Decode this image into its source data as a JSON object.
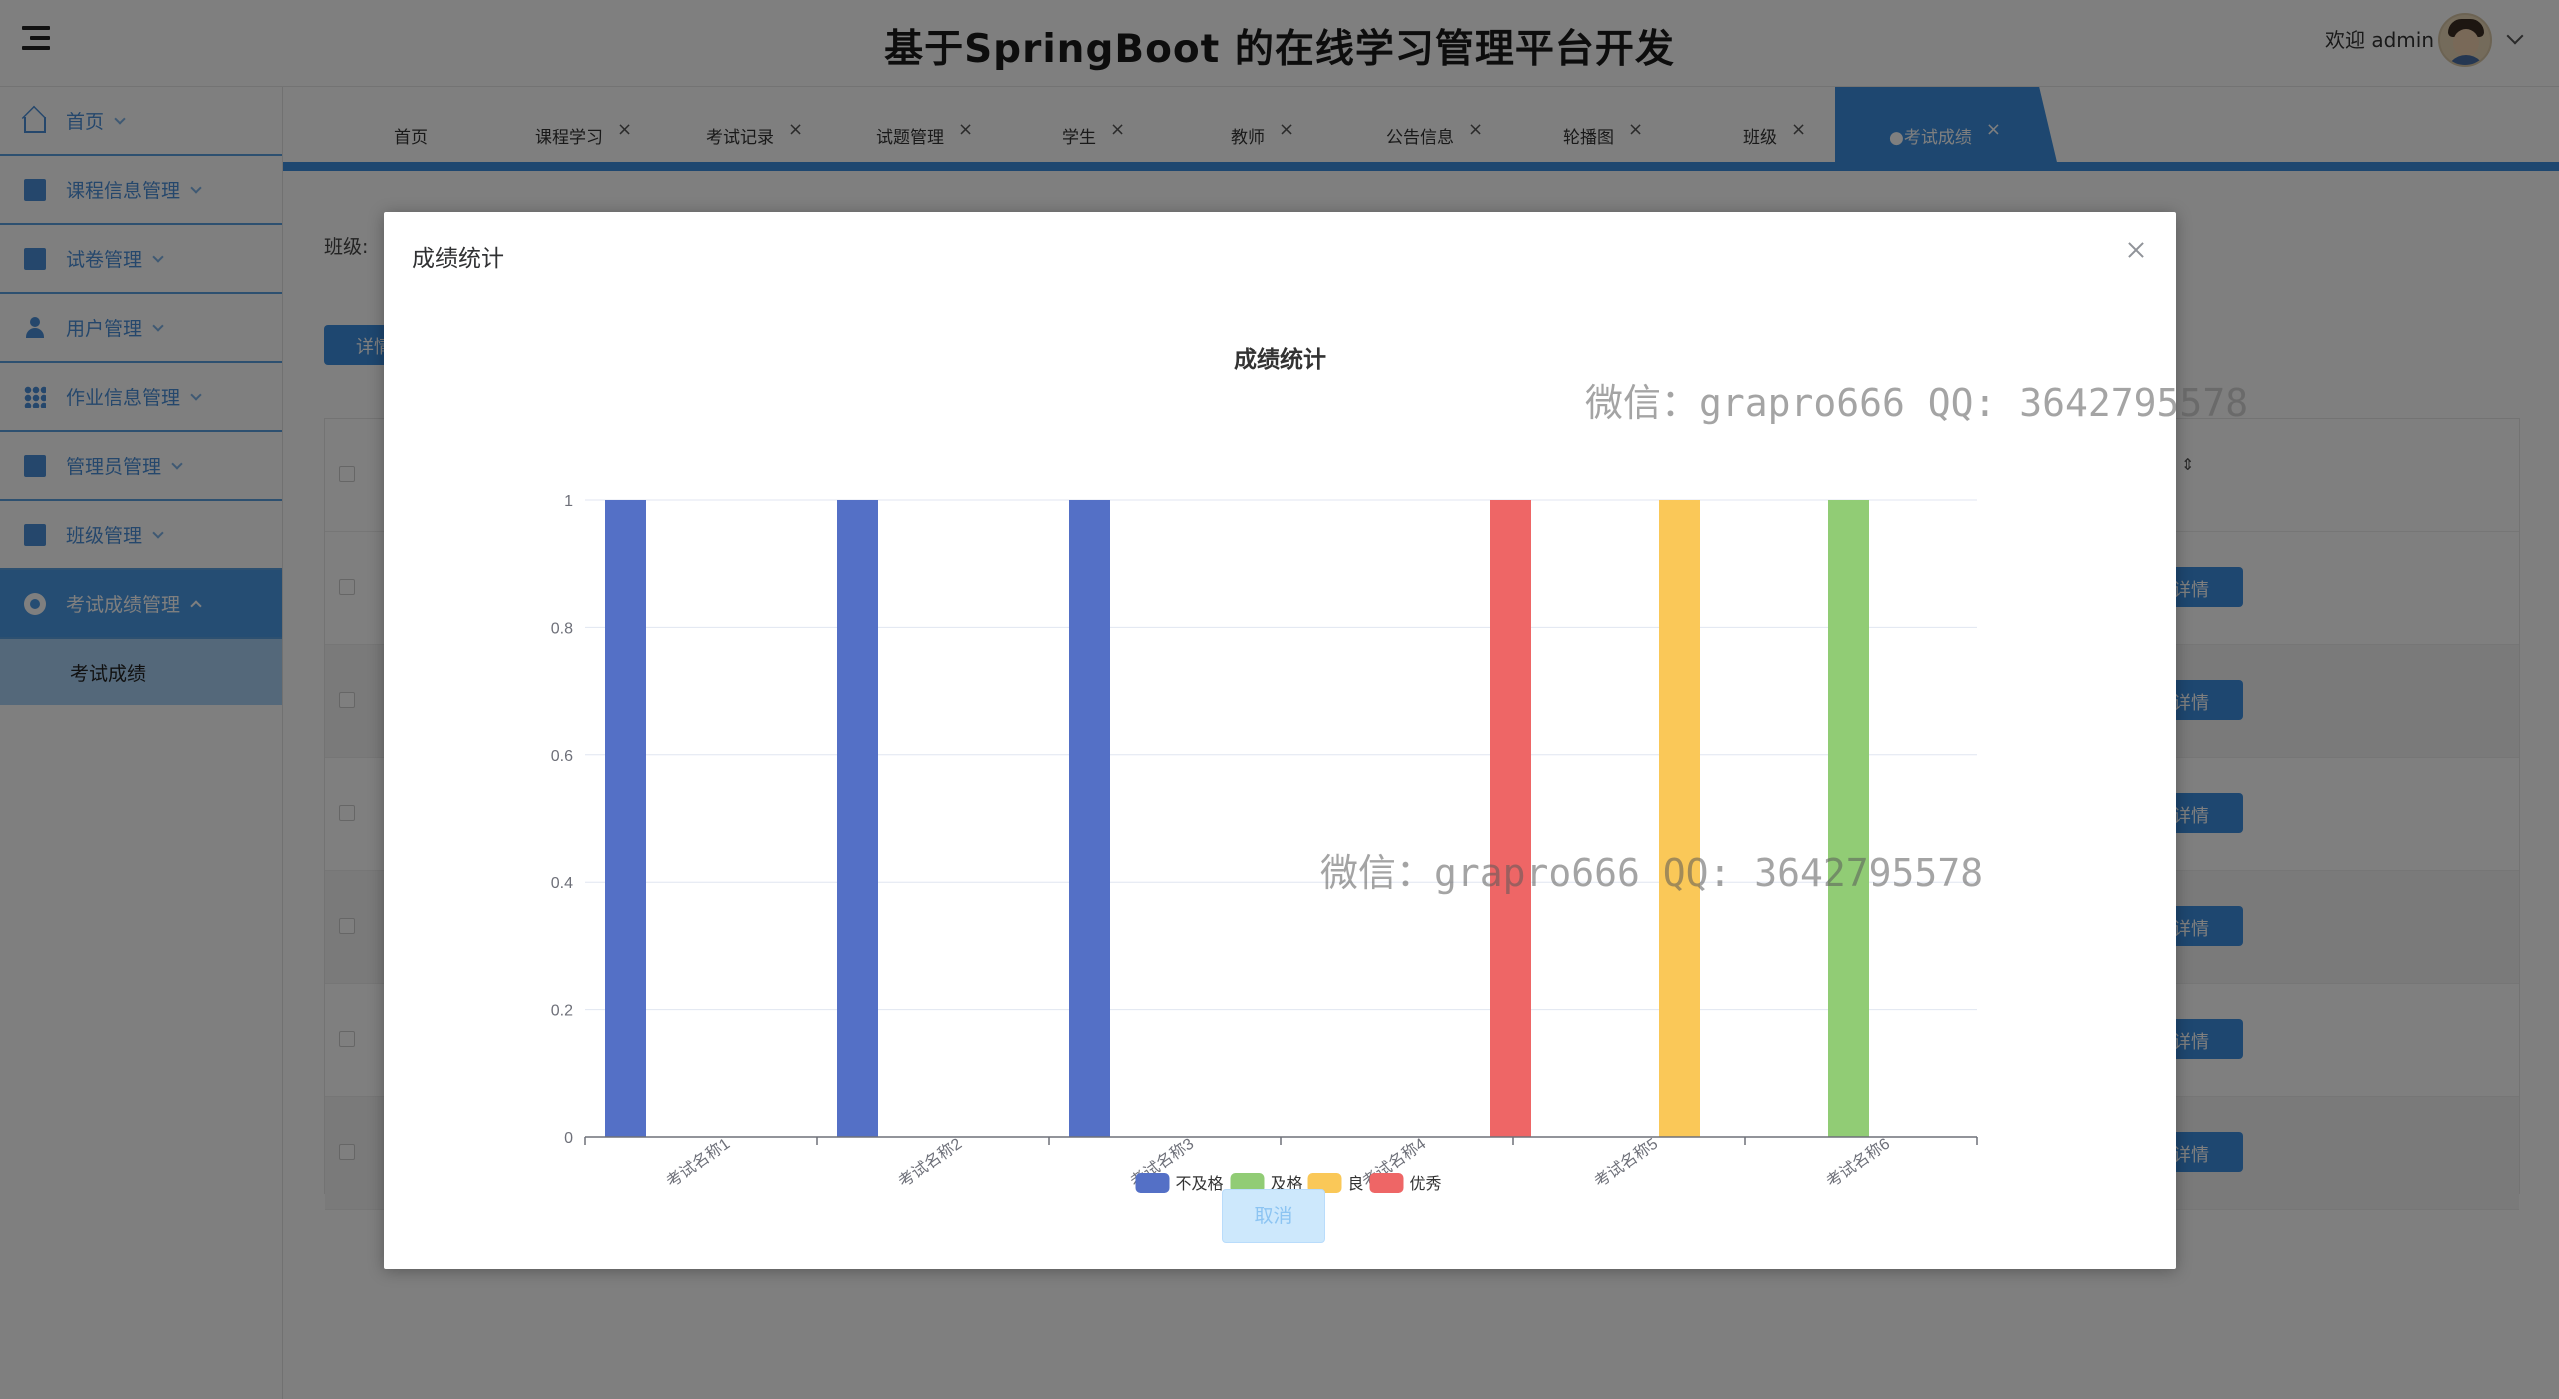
{
  "header": {
    "title": "基于SpringBoot 的在线学习管理平台开发",
    "welcome": "欢迎 admin"
  },
  "sidebar": {
    "items": [
      {
        "label": "首页",
        "icon": "home-icon"
      },
      {
        "label": "课程信息管理",
        "icon": "chart-board-icon"
      },
      {
        "label": "试卷管理",
        "icon": "paper-icon"
      },
      {
        "label": "用户管理",
        "icon": "user-icon"
      },
      {
        "label": "作业信息管理",
        "icon": "grid-icon"
      },
      {
        "label": "管理员管理",
        "icon": "table-icon"
      },
      {
        "label": "班级管理",
        "icon": "class-icon"
      },
      {
        "label": "考试成绩管理",
        "icon": "circle-dot-icon"
      }
    ],
    "sub_item": "考试成绩"
  },
  "tabs": [
    {
      "label": "首页"
    },
    {
      "label": "课程学习"
    },
    {
      "label": "考试记录"
    },
    {
      "label": "试题管理"
    },
    {
      "label": "学生"
    },
    {
      "label": "教师"
    },
    {
      "label": "公告信息"
    },
    {
      "label": "轮播图"
    },
    {
      "label": "班级"
    },
    {
      "label": "●考试成绩"
    }
  ],
  "main": {
    "filter_label": "班级:",
    "detail_label": "详情",
    "row_detail_label": "详情"
  },
  "dialog": {
    "title": "成绩统计",
    "cancel_label": "取消"
  },
  "watermark": "微信：grapro666 QQ: 3642795578",
  "colors": {
    "fail": "#5470c6",
    "pass": "#91cc75",
    "good": "#fac858",
    "excellent": "#ee6666",
    "primary": "#3d8fe0"
  },
  "chart_data": {
    "type": "bar",
    "title": "成绩统计",
    "categories": [
      "考试名称1",
      "考试名称2",
      "考试名称3",
      "考试名称4",
      "考试名称5",
      "考试名称6"
    ],
    "series": [
      {
        "name": "不及格",
        "color": "#5470c6",
        "values": [
          1,
          1,
          1,
          0,
          0,
          0
        ]
      },
      {
        "name": "及格",
        "color": "#91cc75",
        "values": [
          0,
          0,
          0,
          0,
          0,
          1
        ]
      },
      {
        "name": "良",
        "color": "#fac858",
        "values": [
          0,
          0,
          0,
          0,
          1,
          0
        ]
      },
      {
        "name": "优秀",
        "color": "#ee6666",
        "values": [
          0,
          0,
          0,
          1,
          0,
          0
        ]
      }
    ],
    "ylim": [
      0,
      1
    ],
    "yticks": [
      "0",
      "0.2",
      "0.4",
      "0.6",
      "0.8",
      "1"
    ],
    "legend": "bottom",
    "grid": true
  }
}
